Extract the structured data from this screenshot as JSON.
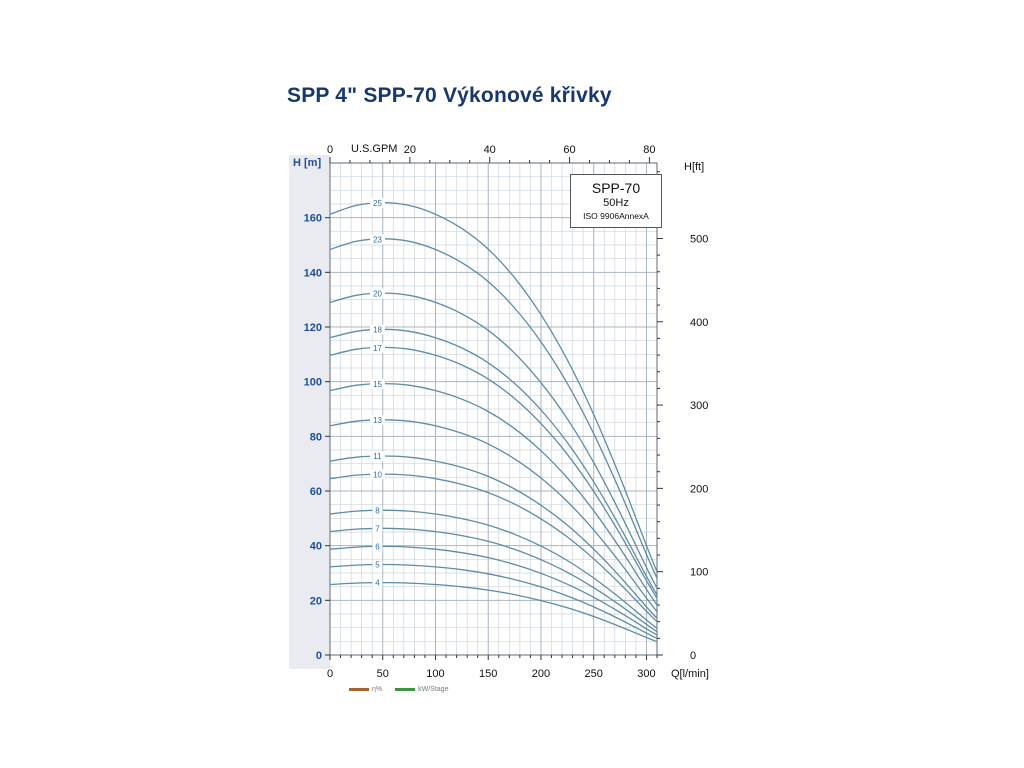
{
  "page": {
    "title": "SPP 4\" SPP-70 Výkonové křivky"
  },
  "colors": {
    "title": "#17376e",
    "axis_left_text": "#1f4e9c",
    "grid_minor": "#ccd5df",
    "grid_major": "#a9b4c2",
    "plot_border": "#606b79",
    "strip_bg": "#e9ebf0",
    "tick_color": "#333333"
  },
  "chart_data": {
    "type": "line",
    "title": "SPP 4\" SPP-70 Výkonové křivky",
    "info_box": {
      "model": "SPP-70",
      "frequency": "50Hz",
      "standard": "ISO 9906AnnexA"
    },
    "axes": {
      "bottom": {
        "label": "Q[l/min]",
        "ticks": [
          0,
          50,
          100,
          150,
          200,
          250,
          300
        ],
        "range": [
          0,
          310
        ],
        "minor_step": 10
      },
      "top": {
        "label": "U.S.GPM",
        "ticks": [
          0,
          20,
          40,
          60,
          80
        ],
        "lmin_per_gpm": 3.785
      },
      "left": {
        "label": "H [m]",
        "ticks": [
          0,
          20,
          40,
          60,
          80,
          100,
          120,
          140,
          160
        ],
        "range": [
          0,
          180
        ],
        "minor_step": 5
      },
      "right": {
        "label": "H[ft]",
        "ticks": [
          0,
          100,
          200,
          300,
          400,
          500
        ],
        "m_per_ft": 0.3048,
        "minor_step": 20
      }
    },
    "grid": true,
    "series_formula": "H(Q) = stages × head_per_stage_m(Q)",
    "q_lmin": [
      0,
      25,
      50,
      75,
      100,
      125,
      150,
      175,
      200,
      225,
      250,
      275,
      300,
      310
    ],
    "head_per_stage_m": [
      6.45,
      6.58,
      6.62,
      6.58,
      6.45,
      6.24,
      5.94,
      5.52,
      4.98,
      4.32,
      3.52,
      2.6,
      1.6,
      1.22
    ],
    "stages": [
      25,
      23,
      20,
      18,
      17,
      15,
      13,
      11,
      10,
      8,
      7,
      6,
      5,
      4
    ],
    "curve_color": "#5e8ba7",
    "curve_label_color": "#2f6da8",
    "curve_label_q": 45,
    "bottom_legend": [
      {
        "label": "η%",
        "color": "#a9622a"
      },
      {
        "label": "kW/Stage",
        "color": "#3a9440"
      }
    ]
  }
}
